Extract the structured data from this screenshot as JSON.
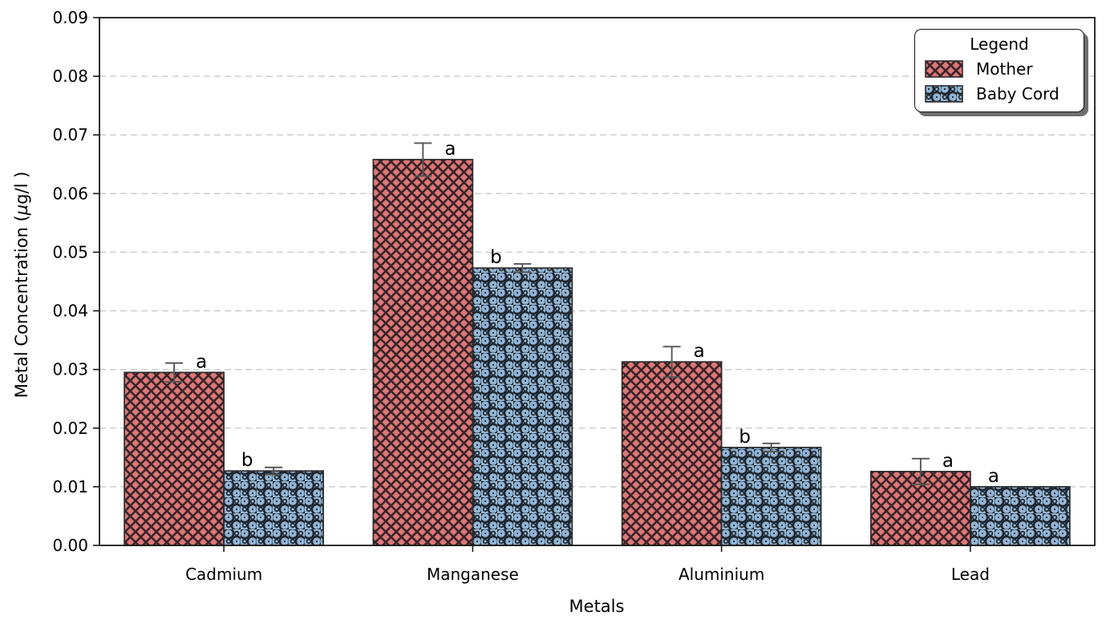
{
  "chart_data": {
    "type": "bar",
    "title": "",
    "xlabel": "Metals",
    "ylabel": {
      "pre": "Metal Concentration (",
      "mu": "µ",
      "post": "g/l )"
    },
    "categories": [
      "Cadmium",
      "Manganese",
      "Aluminium",
      "Lead"
    ],
    "series": [
      {
        "name": "Mother",
        "values": [
          0.0295,
          0.0658,
          0.0313,
          0.0126
        ],
        "errors": [
          0.0016,
          0.0028,
          0.0026,
          0.0022
        ],
        "sig_letters": [
          "a",
          "a",
          "a",
          "a"
        ],
        "fill": "#DC7878",
        "hatch": "crosshatch",
        "hatch_color": "#3A2328"
      },
      {
        "name": "Baby Cord",
        "values": [
          0.0127,
          0.0473,
          0.0167,
          0.01
        ],
        "errors": [
          0.0006,
          0.0007,
          0.0007,
          0
        ],
        "sig_letters": [
          "b",
          "b",
          "b",
          "a"
        ],
        "fill": "#93B5D3",
        "hatch": "circles",
        "hatch_color": "#1F2730"
      }
    ],
    "ylim": [
      0,
      0.09
    ],
    "ytick_step": 0.01,
    "ytick_decimals": 2,
    "grid": {
      "show": true,
      "color": "#C9C9C9",
      "style": "dashed",
      "axis": "y"
    },
    "bar_edge_color": "#2B2B2B",
    "errorbar_color": "#555555",
    "spine_color": "#1A1A1A",
    "sig_letter_color": "#000000",
    "legend": {
      "title": "Legend",
      "position": "upper right"
    }
  }
}
